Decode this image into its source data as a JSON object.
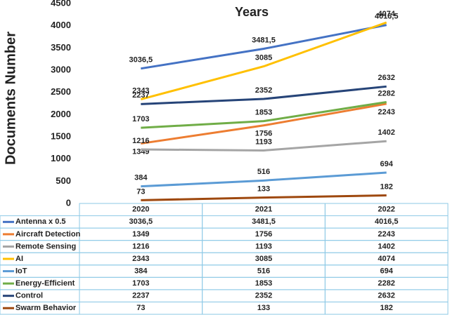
{
  "chart_data": {
    "type": "line",
    "title": "Years",
    "y_label": "Documents Number",
    "categories": [
      "2020",
      "2021",
      "2022"
    ],
    "ylim": [
      0,
      4500
    ],
    "yticks": [
      0,
      500,
      1000,
      1500,
      2000,
      2500,
      3000,
      3500,
      4000,
      4500
    ],
    "grid": false,
    "series": [
      {
        "name": "Antenna x 0.5",
        "color": "#4472c4",
        "values": [
          3036.5,
          3481.5,
          4016.5
        ],
        "value_labels": [
          "3036,5",
          "3481,5",
          "4016,5"
        ]
      },
      {
        "name": "Aircraft Detection",
        "color": "#ed7d31",
        "values": [
          1349,
          1756,
          2243
        ]
      },
      {
        "name": "Remote Sensing",
        "color": "#a5a5a5",
        "values": [
          1216,
          1193,
          1402
        ]
      },
      {
        "name": "AI",
        "color": "#ffc000",
        "values": [
          2343,
          3085,
          4074
        ]
      },
      {
        "name": "IoT",
        "color": "#5b9bd5",
        "values": [
          384,
          516,
          694
        ]
      },
      {
        "name": "Energy-Efficient",
        "color": "#70ad47",
        "values": [
          1703,
          1853,
          2282
        ]
      },
      {
        "name": "Control",
        "color": "#264478",
        "values": [
          2237,
          2352,
          2632
        ]
      },
      {
        "name": "Swarm Behavior",
        "color": "#9e480e",
        "values": [
          73,
          133,
          182
        ]
      }
    ]
  }
}
